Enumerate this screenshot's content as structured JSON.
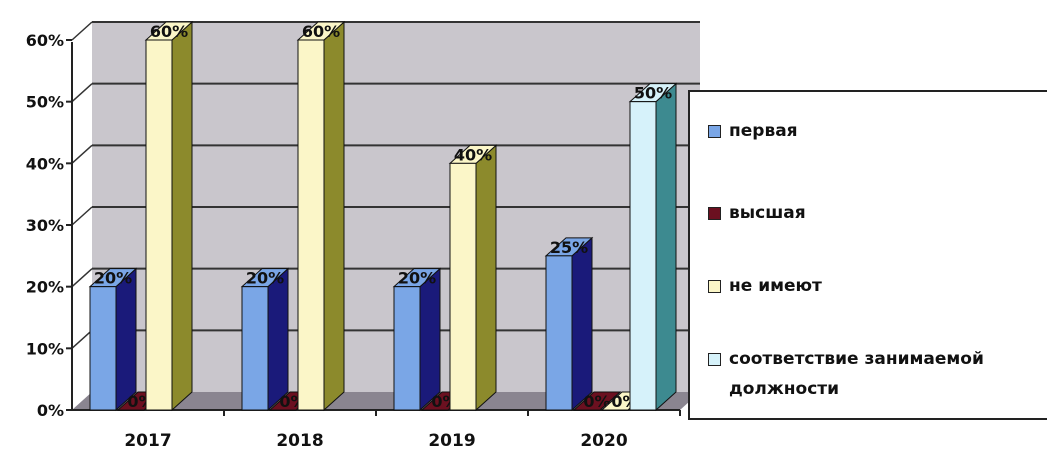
{
  "chart_data": {
    "type": "bar",
    "categories": [
      "2017",
      "2018",
      "2019",
      "2020"
    ],
    "series": [
      {
        "name": "первая",
        "values": [
          20,
          20,
          20,
          25
        ],
        "labels": [
          "20%",
          "20%",
          "20%",
          "25%"
        ],
        "color": "#7aa6e6",
        "side": "#1a1a7a"
      },
      {
        "name": "высшая",
        "values": [
          0,
          0,
          0,
          0
        ],
        "labels": [
          "0%",
          "0%",
          "0%",
          "0%"
        ],
        "color": "#6b1020",
        "side": "#3a0810"
      },
      {
        "name": "не имеют",
        "values": [
          60,
          60,
          40,
          0
        ],
        "labels": [
          "60%",
          "60%",
          "40%",
          "0%"
        ],
        "color": "#fbf6c8",
        "side": "#8c8a2c"
      },
      {
        "name": "соответствие занимаемой должности",
        "values": [
          null,
          null,
          null,
          50
        ],
        "labels": [
          "",
          "",
          "",
          "50%"
        ],
        "color": "#d6f2fa",
        "side": "#3d8a90"
      }
    ],
    "ylim": [
      0,
      60
    ],
    "yticks": [
      "0%",
      "10%",
      "20%",
      "30%",
      "40%",
      "50%",
      "60%"
    ],
    "grid": true,
    "legend": "right",
    "xlabel": "",
    "ylabel": "",
    "title": ""
  }
}
